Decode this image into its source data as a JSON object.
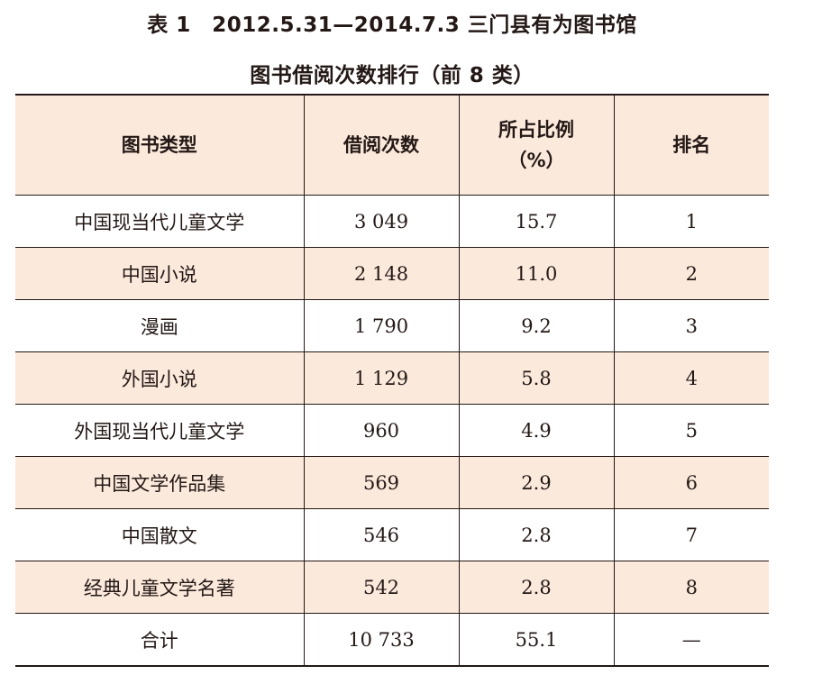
{
  "title": {
    "line1": "表 1　2012.5.31—2014.7.3 三门县有为图书馆",
    "line2": "图书借阅次数排行（前 8 类）"
  },
  "table": {
    "headers": {
      "category": "图书类型",
      "count": "借阅次数",
      "ratio_line1": "所占比例",
      "ratio_line2": "（%）",
      "rank": "排名"
    },
    "rows": [
      {
        "category": "中国现当代儿童文学",
        "count": "3 049",
        "ratio": "15.7",
        "rank": "1"
      },
      {
        "category": "中国小说",
        "count": "2 148",
        "ratio": "11.0",
        "rank": "2"
      },
      {
        "category": "漫画",
        "count": "1 790",
        "ratio": "9.2",
        "rank": "3"
      },
      {
        "category": "外国小说",
        "count": "1 129",
        "ratio": "5.8",
        "rank": "4"
      },
      {
        "category": "外国现当代儿童文学",
        "count": "960",
        "ratio": "4.9",
        "rank": "5"
      },
      {
        "category": "中国文学作品集",
        "count": "569",
        "ratio": "2.9",
        "rank": "6"
      },
      {
        "category": "中国散文",
        "count": "546",
        "ratio": "2.8",
        "rank": "7"
      },
      {
        "category": "经典儿童文学名著",
        "count": "542",
        "ratio": "2.8",
        "rank": "8"
      }
    ],
    "total": {
      "category": "合计",
      "count": "10 733",
      "ratio": "55.1",
      "rank": "—"
    }
  },
  "colors": {
    "shade": "#fbe9dc",
    "text": "#231815",
    "rule": "#231815"
  }
}
